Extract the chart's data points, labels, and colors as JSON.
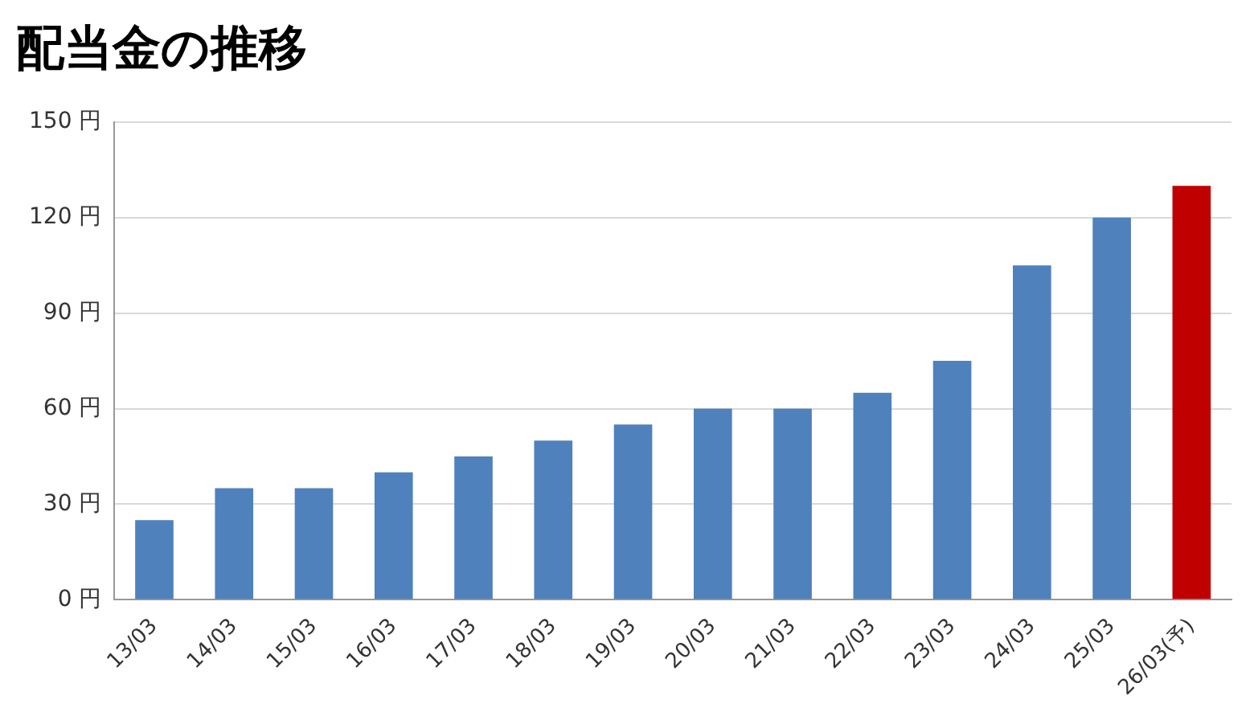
{
  "chart_data": {
    "type": "bar",
    "title": "配当金の推移",
    "categories": [
      "13/03",
      "14/03",
      "15/03",
      "16/03",
      "17/03",
      "18/03",
      "19/03",
      "20/03",
      "21/03",
      "22/03",
      "23/03",
      "24/03",
      "25/03",
      "26/03(予)"
    ],
    "values": [
      25,
      35,
      35,
      40,
      45,
      50,
      55,
      60,
      60,
      65,
      75,
      105,
      120,
      130
    ],
    "colors": [
      "#4f81bd",
      "#4f81bd",
      "#4f81bd",
      "#4f81bd",
      "#4f81bd",
      "#4f81bd",
      "#4f81bd",
      "#4f81bd",
      "#4f81bd",
      "#4f81bd",
      "#4f81bd",
      "#4f81bd",
      "#4f81bd",
      "#c00000"
    ],
    "ylim": [
      0,
      150
    ],
    "yticks": [
      {
        "value": 0,
        "label": "0 円"
      },
      {
        "value": 30,
        "label": "30 円"
      },
      {
        "value": 60,
        "label": "60 円"
      },
      {
        "value": 90,
        "label": "90 円"
      },
      {
        "value": 120,
        "label": "120 円"
      },
      {
        "value": 150,
        "label": "150 円"
      }
    ],
    "grid": "y",
    "legend": false
  }
}
